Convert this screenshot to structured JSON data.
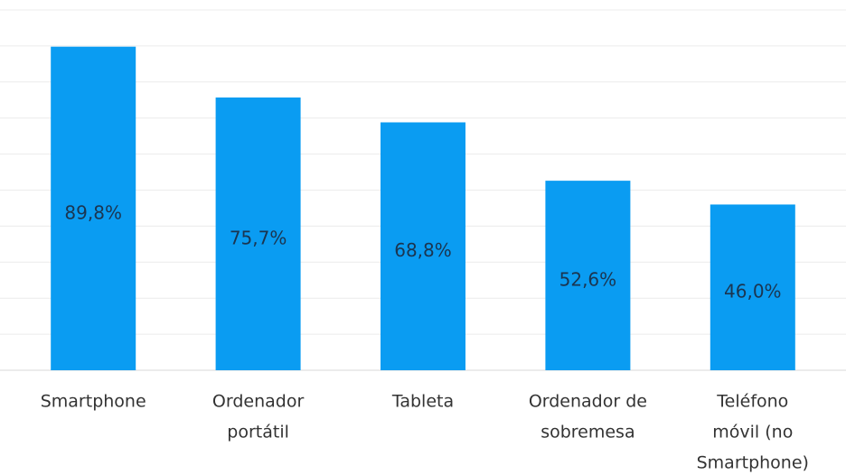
{
  "chart_data": {
    "type": "bar",
    "categories": [
      [
        "Smartphone"
      ],
      [
        "Ordenador",
        "portátil"
      ],
      [
        "Tableta"
      ],
      [
        "Ordenador de",
        "sobremesa"
      ],
      [
        "Teléfono",
        "móvil (no",
        "Smartphone)"
      ]
    ],
    "values": [
      89.8,
      75.7,
      68.8,
      52.6,
      46.0
    ],
    "value_labels": [
      "89,8%",
      "75,7%",
      "68,8%",
      "52,6%",
      "46,0%"
    ],
    "color": "#0a9cf2",
    "ylim": [
      0,
      100
    ],
    "yticks": [
      0,
      10,
      20,
      30,
      40,
      50,
      60,
      70,
      80,
      90,
      100
    ],
    "grid": true
  }
}
